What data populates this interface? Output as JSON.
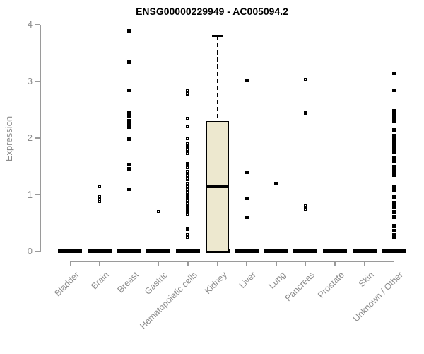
{
  "chart_data": {
    "type": "box-scatter",
    "title": "ENSG00000229949 - AC005094.2",
    "ylabel": "Expression",
    "xlabel": "",
    "ylim": [
      0,
      4
    ],
    "yticks": [
      0,
      1,
      2,
      3,
      4
    ],
    "grid": false,
    "legend": "none",
    "categories": [
      "Bladder",
      "Brain",
      "Breast",
      "Gastric",
      "Hematopoietic cells",
      "Kidney",
      "Liver",
      "Lung",
      "Pancreas",
      "Prostate",
      "Skin",
      "Unknown / Other"
    ],
    "baseline_dash_value": 0,
    "baseline_dash_all_categories": true,
    "series": [
      {
        "category": "Bladder",
        "points": []
      },
      {
        "category": "Brain",
        "points": [
          1.15,
          0.97,
          0.92,
          0.88
        ]
      },
      {
        "category": "Breast",
        "points": [
          3.9,
          3.35,
          2.84,
          2.44,
          2.38,
          2.31,
          2.25,
          2.19,
          1.98,
          1.53,
          1.46,
          1.1
        ]
      },
      {
        "category": "Gastric",
        "points": [
          0.71
        ]
      },
      {
        "category": "Hematopoietic cells",
        "points": [
          2.85,
          2.78,
          2.34,
          2.21,
          2.0,
          1.91,
          1.85,
          1.79,
          1.73,
          1.55,
          1.48,
          1.41,
          1.34,
          1.28,
          1.19,
          1.14,
          1.09,
          1.04,
          0.99,
          0.94,
          0.89,
          0.84,
          0.78,
          0.73,
          0.66,
          0.4,
          0.29,
          0.24
        ]
      },
      {
        "category": "Kidney",
        "points": []
      },
      {
        "category": "Liver",
        "points": [
          3.02,
          1.4,
          0.93,
          0.6
        ]
      },
      {
        "category": "Lung",
        "points": [
          1.19
        ]
      },
      {
        "category": "Pancreas",
        "points": [
          3.03,
          2.44,
          0.81,
          0.75
        ]
      },
      {
        "category": "Prostate",
        "points": []
      },
      {
        "category": "Skin",
        "points": []
      },
      {
        "category": "Unknown / Other",
        "points": [
          3.15,
          2.85,
          2.48,
          2.41,
          2.35,
          2.29,
          2.15,
          2.04,
          1.98,
          1.93,
          1.87,
          1.81,
          1.75,
          1.65,
          1.59,
          1.5,
          1.42,
          1.34,
          1.15,
          1.08,
          0.96,
          0.86,
          0.78,
          0.7,
          0.61,
          0.44,
          0.37,
          0.3,
          0.24
        ]
      }
    ],
    "box": {
      "category": "Kidney",
      "q1": 0,
      "median": 1.15,
      "q3": 2.3,
      "whisker_low": 0,
      "whisker_high": 3.8
    },
    "colors": {
      "box_fill": "#EDE8CF",
      "marker": "#000000",
      "axis": "#9A9A9A",
      "text": "#8C8C8C",
      "title": "#000000"
    }
  }
}
